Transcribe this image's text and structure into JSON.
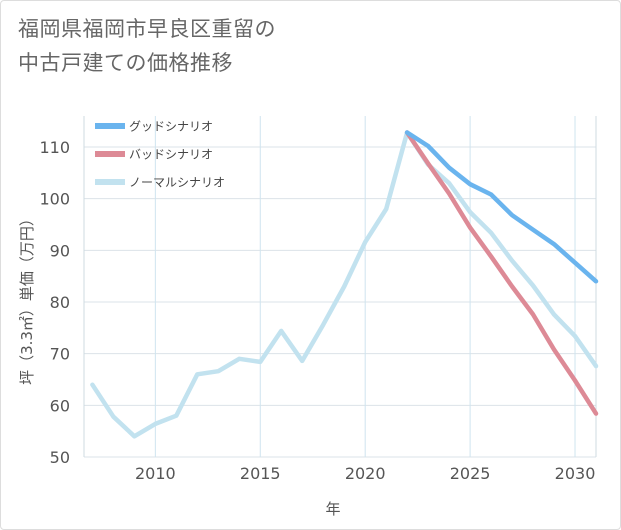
{
  "title": {
    "line1": "福岡県福岡市早良区重留の",
    "line2": "中古戸建ての価格推移"
  },
  "chart_data": {
    "type": "line",
    "title": "福岡県福岡市早良区重留の中古戸建ての価格推移",
    "xlabel": "年",
    "ylabel": "坪（3.3㎡）単価（万円）",
    "xlim": [
      2006.6,
      2031
    ],
    "ylim": [
      50,
      116
    ],
    "xticks": [
      2010,
      2015,
      2020,
      2025,
      2030
    ],
    "yticks": [
      50,
      60,
      70,
      80,
      90,
      100,
      110
    ],
    "grid": true,
    "legend_position": "top-left",
    "series": [
      {
        "name": "グッドシナリオ",
        "color": "#6ab4ee",
        "x": [
          2022,
          2023,
          2024,
          2025,
          2026,
          2027,
          2028,
          2029,
          2030,
          2031
        ],
        "values": [
          112.8,
          110.2,
          106,
          102.8,
          100.8,
          96.8,
          94,
          91.2,
          87.6,
          84
        ]
      },
      {
        "name": "バッドシナリオ",
        "color": "#dd8a96",
        "x": [
          2022,
          2023,
          2024,
          2025,
          2026,
          2027,
          2028,
          2029,
          2030,
          2031
        ],
        "values": [
          112.8,
          106.8,
          101,
          94.4,
          88.8,
          83,
          77.6,
          70.8,
          64.8,
          58.4
        ]
      },
      {
        "name": "ノーマルシナリオ",
        "color": "#c2e2ef",
        "x": [
          2007,
          2008,
          2009,
          2010,
          2011,
          2012,
          2013,
          2014,
          2015,
          2016,
          2017,
          2018,
          2019,
          2020,
          2021,
          2022,
          2023,
          2024,
          2025,
          2026,
          2027,
          2028,
          2029,
          2030,
          2031
        ],
        "values": [
          64,
          57.8,
          54,
          56.4,
          58,
          66,
          66.6,
          69,
          68.4,
          74.4,
          68.6,
          75.6,
          83,
          91.6,
          98,
          112.8,
          106.6,
          103,
          97.4,
          93.4,
          88,
          83.2,
          77.6,
          73.4,
          67.6
        ]
      }
    ]
  }
}
